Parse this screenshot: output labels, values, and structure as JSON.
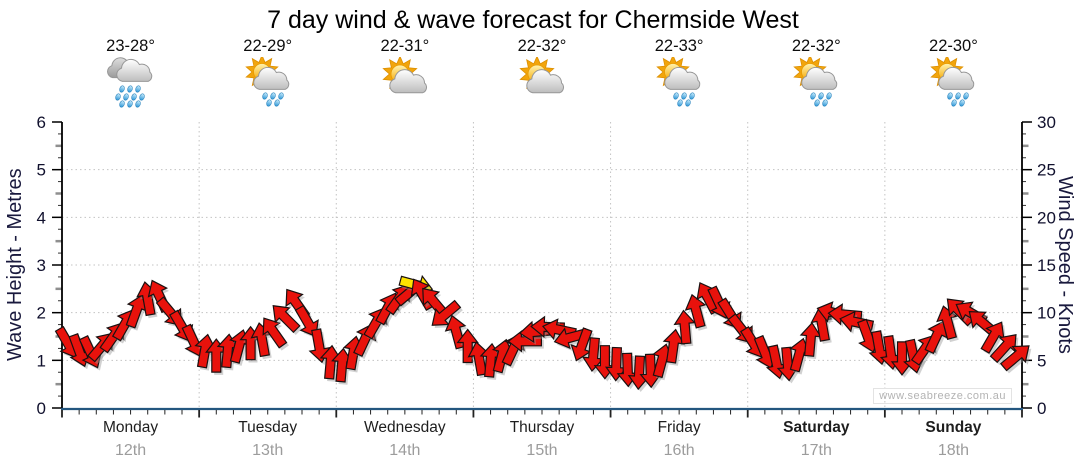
{
  "header": {
    "title": "7 day wind & wave forecast for Chermside West"
  },
  "watermark": "www.seabreeze.com.au",
  "days": [
    {
      "name": "Monday",
      "date": "12th",
      "temp_range": "23-28°",
      "icon": "rain-heavy",
      "bold": false
    },
    {
      "name": "Tuesday",
      "date": "13th",
      "temp_range": "22-29°",
      "icon": "sun-cloud-rain",
      "bold": false
    },
    {
      "name": "Wednesday",
      "date": "14th",
      "temp_range": "22-31°",
      "icon": "sun-cloud",
      "bold": false
    },
    {
      "name": "Thursday",
      "date": "15th",
      "temp_range": "22-32°",
      "icon": "sun-cloud",
      "bold": false
    },
    {
      "name": "Friday",
      "date": "16th",
      "temp_range": "22-33°",
      "icon": "sun-cloud-rain",
      "bold": false
    },
    {
      "name": "Saturday",
      "date": "17th",
      "temp_range": "22-32°",
      "icon": "sun-cloud-rain",
      "bold": true
    },
    {
      "name": "Sunday",
      "date": "18th",
      "temp_range": "22-30°",
      "icon": "sun-cloud-rain",
      "bold": true
    }
  ],
  "chart_data": {
    "type": "scatter",
    "subtype": "wind-direction-arrows",
    "title": "7 day wind & wave forecast for Chermside West",
    "x_categories": [
      "Monday",
      "Tuesday",
      "Wednesday",
      "Thursday",
      "Friday",
      "Saturday",
      "Sunday"
    ],
    "x_dates": [
      "12th",
      "13th",
      "14th",
      "15th",
      "16th",
      "17th",
      "18th"
    ],
    "y_left": {
      "label": "Wave Height - Metres",
      "min": 0,
      "max": 6,
      "major_step": 1
    },
    "y_right": {
      "label": "Wind Speed - Knots",
      "min": 0,
      "max": 30,
      "major_step": 5
    },
    "grid": {
      "horizontal_dotted": true,
      "vertical_day_boundaries": true
    },
    "x_minor_ticks_per_day": 8,
    "arrows_per_day": 12,
    "arrow_color": "#e8120c",
    "arrow_outline": "#1a1111",
    "wind_kt": [
      [
        6.8,
        6,
        5.8,
        6.5,
        7.5,
        8.8,
        10.2,
        11.5,
        11.8,
        10,
        8.5,
        7
      ],
      [
        6,
        5.5,
        6,
        6.5,
        6.8,
        7.2,
        8,
        9.5,
        11,
        9,
        6.5,
        4.8
      ],
      [
        4.5,
        5.8,
        7.2,
        9,
        10.5,
        11.5,
        12.2,
        12,
        11.2,
        9.8,
        8,
        6.5
      ],
      [
        5.2,
        5,
        5.5,
        6.2,
        7,
        8,
        8.5,
        8.2,
        7.4,
        6.6,
        5.6,
        4.8
      ],
      [
        4.6,
        4,
        3.7,
        3.9,
        5,
        6.5,
        8.5,
        10.2,
        11.6,
        11,
        9.8,
        8.2
      ],
      [
        6.8,
        5.8,
        4.8,
        4.6,
        5.6,
        7.2,
        8.8,
        10,
        9.8,
        9,
        7.5,
        6.3
      ],
      [
        5.8,
        5.2,
        5.4,
        6.2,
        7.5,
        9,
        10.2,
        10,
        9,
        7.5,
        6.4,
        5.4
      ]
    ],
    "wind_dir_deg": [
      [
        150,
        160,
        155,
        40,
        35,
        30,
        20,
        350,
        335,
        140,
        150,
        155
      ],
      [
        10,
        0,
        5,
        15,
        0,
        350,
        325,
        315,
        325,
        150,
        170,
        5
      ],
      [
        5,
        10,
        25,
        30,
        28,
        35,
        50,
        330,
        320,
        230,
        345,
        0
      ],
      [
        350,
        5,
        15,
        25,
        270,
        265,
        272,
        282,
        255,
        200,
        185,
        180
      ],
      [
        182,
        178,
        183,
        178,
        15,
        8,
        355,
        345,
        332,
        155,
        148,
        142
      ],
      [
        148,
        158,
        168,
        175,
        15,
        5,
        350,
        285,
        275,
        282,
        160,
        170
      ],
      [
        172,
        180,
        168,
        35,
        25,
        345,
        315,
        300,
        310,
        30,
        42,
        50
      ]
    ],
    "special_arrows": [
      {
        "day_index": 2,
        "slot": 6.5,
        "kt": 12.9,
        "dir_deg": 105,
        "color": "#ffe400",
        "behind": true
      }
    ],
    "colors": {
      "bottom_axis": "#23567f",
      "axis_line": "#000000",
      "grid_dotted": "#c3c3c3",
      "tick_label": "#10102d",
      "minor_tick_gray": "#8f8f8f"
    }
  }
}
